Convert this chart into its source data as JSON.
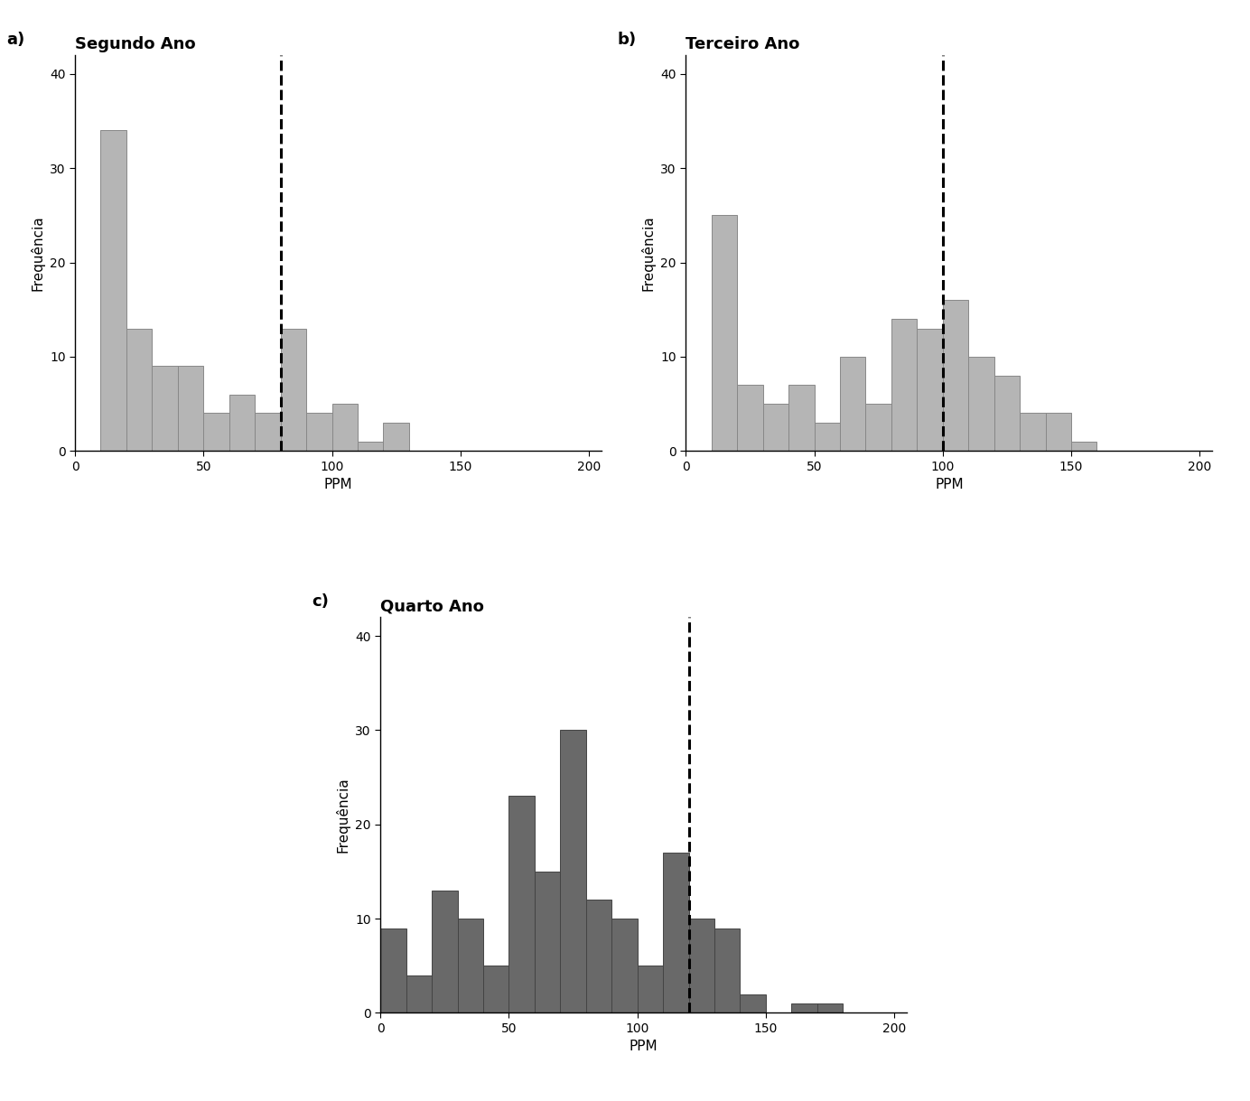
{
  "segundo_ano": {
    "title": "Segundo Ano",
    "label": "a)",
    "bar_heights": [
      0,
      34,
      13,
      9,
      9,
      4,
      6,
      4,
      13,
      4,
      5,
      1,
      3,
      0,
      0,
      0,
      0,
      0,
      0,
      0
    ],
    "bin_width": 10,
    "bin_start": 0,
    "dashed_line_x": 80,
    "ylim": [
      0,
      42
    ],
    "yticks": [
      0,
      10,
      20,
      30,
      40
    ],
    "xlim": [
      0,
      205
    ],
    "xticks": [
      0,
      50,
      100,
      150,
      200
    ],
    "bar_color": "#b5b5b5",
    "bar_edge_color": "#888888"
  },
  "terceiro_ano": {
    "title": "Terceiro Ano",
    "label": "b)",
    "bar_heights": [
      0,
      25,
      7,
      5,
      7,
      3,
      10,
      5,
      14,
      13,
      16,
      10,
      8,
      4,
      4,
      1,
      0,
      0,
      0,
      0
    ],
    "bin_width": 10,
    "bin_start": 0,
    "dashed_line_x": 100,
    "ylim": [
      0,
      42
    ],
    "yticks": [
      0,
      10,
      20,
      30,
      40
    ],
    "xlim": [
      0,
      205
    ],
    "xticks": [
      0,
      50,
      100,
      150,
      200
    ],
    "bar_color": "#b5b5b5",
    "bar_edge_color": "#888888"
  },
  "quarto_ano": {
    "title": "Quarto Ano",
    "label": "c)",
    "bar_heights": [
      9,
      4,
      13,
      10,
      5,
      23,
      15,
      30,
      12,
      10,
      5,
      17,
      10,
      9,
      2,
      0,
      1,
      1,
      0,
      0
    ],
    "bin_width": 10,
    "bin_start": 0,
    "dashed_line_x": 120,
    "ylim": [
      0,
      42
    ],
    "yticks": [
      0,
      10,
      20,
      30,
      40
    ],
    "xlim": [
      0,
      205
    ],
    "xticks": [
      0,
      50,
      100,
      150,
      200
    ],
    "bar_color": "#696969",
    "bar_edge_color": "#444444"
  },
  "ylabel": "Frequência",
  "xlabel": "PPM",
  "bg_color": "#ffffff",
  "title_fontsize": 13,
  "axis_fontsize": 11,
  "label_fontsize": 13,
  "tick_fontsize": 10
}
